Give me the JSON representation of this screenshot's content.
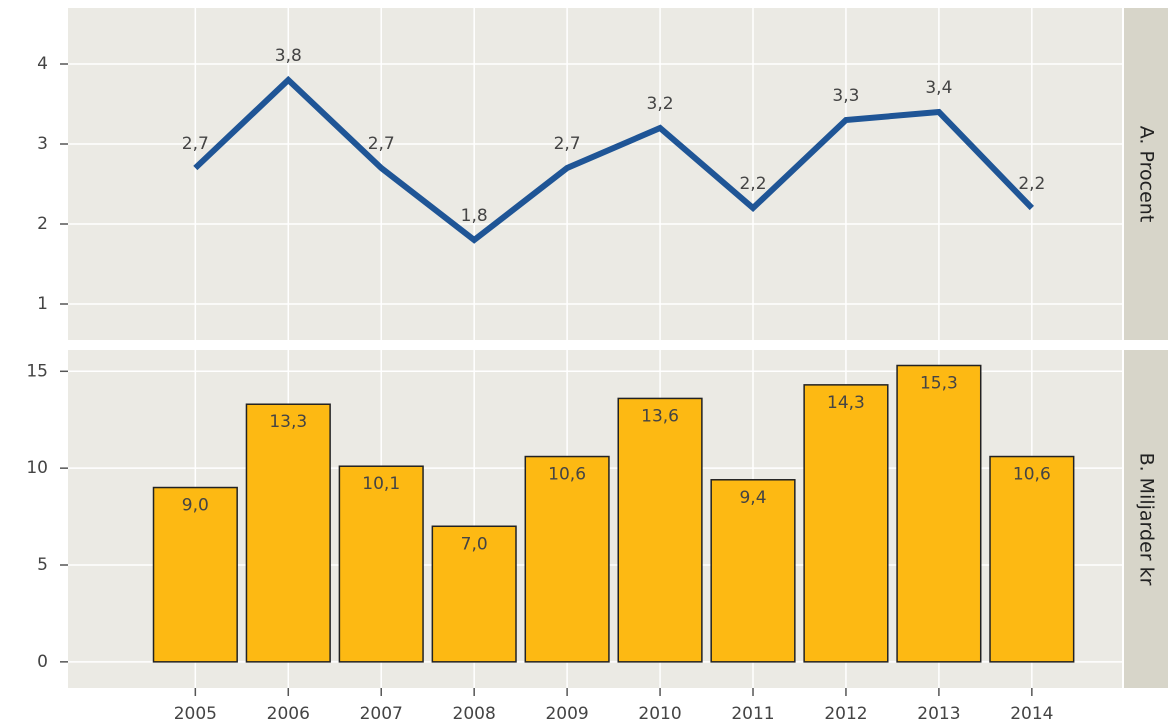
{
  "chart_data": [
    {
      "type": "line",
      "panel_label": "A. Procent",
      "x": [
        2005,
        2006,
        2007,
        2008,
        2009,
        2010,
        2011,
        2012,
        2013,
        2014
      ],
      "values": [
        2.7,
        3.8,
        2.7,
        1.8,
        2.7,
        3.2,
        2.2,
        3.3,
        3.4,
        2.2
      ],
      "value_labels": [
        "2,7",
        "3,8",
        "2,7",
        "1,8",
        "2,7",
        "3,2",
        "2,2",
        "3,3",
        "3,4",
        "2,2"
      ],
      "color": "#1f5596",
      "xlim": [
        2003.63,
        2014.97
      ],
      "xticks": [
        2005,
        2006,
        2007,
        2008,
        2009,
        2010,
        2011,
        2012,
        2013,
        2014
      ],
      "ylim": [
        0.55,
        4.7
      ],
      "yticks": [
        1,
        2,
        3,
        4
      ],
      "grid": true
    },
    {
      "type": "bar",
      "panel_label": "B. Miljarder kr",
      "x": [
        2005,
        2006,
        2007,
        2008,
        2009,
        2010,
        2011,
        2012,
        2013,
        2014
      ],
      "values": [
        9.0,
        13.3,
        10.1,
        7.0,
        10.6,
        13.6,
        9.4,
        14.3,
        15.3,
        10.6
      ],
      "value_labels": [
        "9,0",
        "13,3",
        "10,1",
        "7,0",
        "10,6",
        "13,6",
        "9,4",
        "14,3",
        "15,3",
        "10,6"
      ],
      "color": "#fdb913",
      "xlim": [
        2003.63,
        2014.97
      ],
      "xticks": [
        2005,
        2006,
        2007,
        2008,
        2009,
        2010,
        2011,
        2012,
        2013,
        2014
      ],
      "ylim": [
        -1.35,
        16.1
      ],
      "yticks": [
        0,
        5,
        10,
        15
      ],
      "grid": true
    }
  ]
}
